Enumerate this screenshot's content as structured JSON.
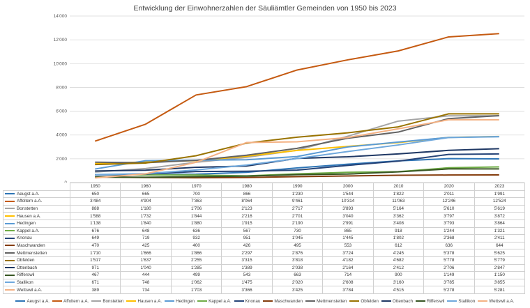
{
  "chart_data": {
    "type": "line",
    "title": "Entwicklung der Einwohnerzahlen der Säuliämtler Gemeinden von 1950 bis 2023",
    "xlabel": "",
    "ylabel": "",
    "ylim": [
      0,
      14000
    ],
    "y_ticks": [
      "0",
      "2'000",
      "4'000",
      "6'000",
      "8'000",
      "10'000",
      "12'000",
      "14'000"
    ],
    "grid": true,
    "legend_position": "bottom",
    "categories": [
      "1950",
      "1960",
      "1970",
      "1980",
      "1990",
      "2000",
      "2010",
      "2020",
      "2023"
    ],
    "series": [
      {
        "name": "Aeugst a.A.",
        "color": "#2e75b6",
        "values": [
          650,
          665,
          700,
          866,
          1230,
          1544,
          1822,
          2011,
          1991
        ],
        "labels": [
          "650",
          "665",
          "700",
          "866",
          "1'230",
          "1'544",
          "1'822",
          "2'011",
          "1'991"
        ]
      },
      {
        "name": "Affoltern a.A.",
        "color": "#c55a11",
        "values": [
          3484,
          4904,
          7363,
          8064,
          9461,
          10314,
          11063,
          12246,
          12524
        ],
        "labels": [
          "3'484",
          "4'904",
          "7'363",
          "8'064",
          "9'461",
          "10'314",
          "11'063",
          "12'246",
          "12'524"
        ]
      },
      {
        "name": "Bonstetten",
        "color": "#a5a5a5",
        "values": [
          888,
          1180,
          1706,
          2123,
          2717,
          3893,
          5164,
          5610,
          5619
        ],
        "labels": [
          "888",
          "1'180",
          "1'706",
          "2'123",
          "2'717",
          "3'893",
          "5'164",
          "5'610",
          "5'619"
        ]
      },
      {
        "name": "Hausen a.A.",
        "color": "#ffc000",
        "values": [
          1588,
          1732,
          1844,
          2216,
          2701,
          3040,
          3362,
          3797,
          3872
        ],
        "labels": [
          "1'588",
          "1'732",
          "1'844",
          "2'216",
          "2'701",
          "3'040",
          "3'362",
          "3'797",
          "3'872"
        ]
      },
      {
        "name": "Hedingen",
        "color": "#5b9bd5",
        "values": [
          1138,
          1840,
          1880,
          1915,
          2190,
          2991,
          3408,
          3793,
          3864
        ],
        "labels": [
          "1'138",
          "1'840",
          "1'880",
          "1'915",
          "2'190",
          "2'991",
          "3'408",
          "3'793",
          "3'864"
        ]
      },
      {
        "name": "Kappel a.A.",
        "color": "#70ad47",
        "values": [
          676,
          648,
          636,
          567,
          730,
          865,
          918,
          1244,
          1321
        ],
        "labels": [
          "676",
          "648",
          "636",
          "567",
          "730",
          "865",
          "918",
          "1'244",
          "1'321"
        ]
      },
      {
        "name": "Knonau",
        "color": "#264478",
        "values": [
          649,
          719,
          932,
          951,
          1045,
          1445,
          1802,
          2368,
          2411
        ],
        "labels": [
          "649",
          "719",
          "932",
          "951",
          "1'045",
          "1'445",
          "1'802",
          "2'368",
          "2'411"
        ]
      },
      {
        "name": "Maschwanden",
        "color": "#843c0c",
        "values": [
          470,
          425,
          400,
          426,
          495,
          553,
          612,
          636,
          644
        ],
        "labels": [
          "470",
          "425",
          "400",
          "426",
          "495",
          "553",
          "612",
          "636",
          "644"
        ]
      },
      {
        "name": "Mettmenstetten",
        "color": "#636363",
        "values": [
          1710,
          1666,
          1866,
          2297,
          2876,
          3724,
          4245,
          5378,
          5625
        ],
        "labels": [
          "1'710",
          "1'666",
          "1'866",
          "2'297",
          "2'876",
          "3'724",
          "4'245",
          "5'378",
          "5'625"
        ]
      },
      {
        "name": "Obfelden",
        "color": "#997300",
        "values": [
          1517,
          1637,
          2255,
          3315,
          3818,
          4182,
          4682,
          5778,
          5779
        ],
        "labels": [
          "1'517",
          "1'637",
          "2'255",
          "3'315",
          "3'818",
          "4'182",
          "4'682",
          "5'778",
          "5'779"
        ]
      },
      {
        "name": "Ottenbach",
        "color": "#1f3864",
        "values": [
          971,
          1040,
          1285,
          1389,
          2038,
          2164,
          2412,
          2706,
          2847
        ],
        "labels": [
          "971",
          "1'040",
          "1'285",
          "1'389",
          "2'038",
          "2'164",
          "2'412",
          "2'706",
          "2'847"
        ]
      },
      {
        "name": "Rifferswil",
        "color": "#375623",
        "values": [
          467,
          444,
          499,
          543,
          663,
          714,
          900,
          1149,
          1150
        ],
        "labels": [
          "467",
          "444",
          "499",
          "543",
          "663",
          "714",
          "900",
          "1'149",
          "1'150"
        ]
      },
      {
        "name": "Stallikon",
        "color": "#6fa8dc",
        "values": [
          671,
          748,
          1062,
          1475,
          2020,
          2608,
          3160,
          3785,
          3855
        ],
        "labels": [
          "671",
          "748",
          "1'062",
          "1'475",
          "2'020",
          "2'608",
          "3'160",
          "3'785",
          "3'855"
        ]
      },
      {
        "name": "Wettswil a.A.",
        "color": "#f4b183",
        "values": [
          389,
          734,
          1703,
          3366,
          3425,
          3784,
          4515,
          5278,
          5281
        ],
        "labels": [
          "389",
          "734",
          "1'703",
          "3'366",
          "3'425",
          "3'784",
          "4'515",
          "5'278",
          "5'281"
        ]
      }
    ]
  }
}
